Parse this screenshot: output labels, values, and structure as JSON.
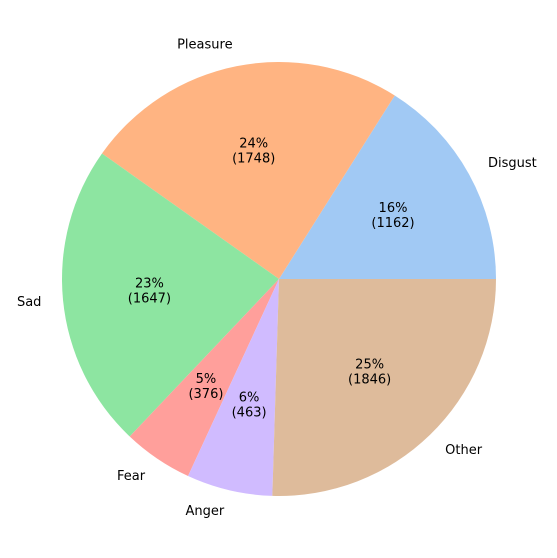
{
  "chart_data": {
    "type": "pie",
    "title": "",
    "start_angle_deg": 0,
    "direction": "counterclockwise",
    "slices": [
      {
        "label": "Disgust",
        "value": 1162,
        "pct_text": "16%",
        "count_text": "(1162)",
        "color": "#a1c9f4"
      },
      {
        "label": "Pleasure",
        "value": 1748,
        "pct_text": "24%",
        "count_text": "(1748)",
        "color": "#ffb482"
      },
      {
        "label": "Sad",
        "value": 1647,
        "pct_text": "23%",
        "count_text": "(1647)",
        "color": "#8de5a1"
      },
      {
        "label": "Fear",
        "value": 376,
        "pct_text": "5%",
        "count_text": "(376)",
        "color": "#ff9f9b"
      },
      {
        "label": "Anger",
        "value": 463,
        "pct_text": "6%",
        "count_text": "(463)",
        "color": "#d0bbff"
      },
      {
        "label": "Other",
        "value": 1846,
        "pct_text": "25%",
        "count_text": "(1846)",
        "color": "#debb9b"
      }
    ]
  }
}
